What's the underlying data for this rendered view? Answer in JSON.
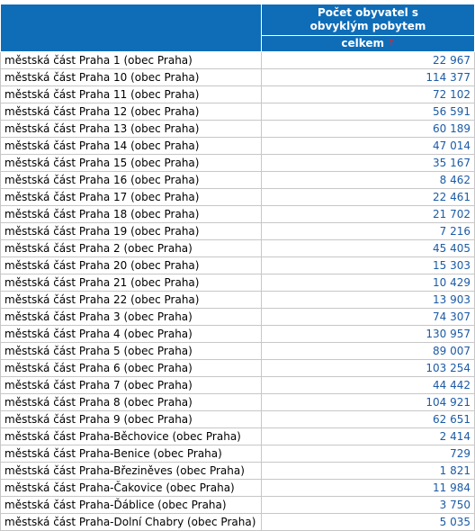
{
  "header": {
    "column_title": "Počet obyvatel s obvyklým pobytem",
    "sub_header": "celkem",
    "sort_icon": "sort-arrow-icon"
  },
  "rows": [
    {
      "name": "městská část Praha 1 (obec Praha)",
      "value": "22 967"
    },
    {
      "name": "městská část Praha 10 (obec Praha)",
      "value": "114 377"
    },
    {
      "name": "městská část Praha 11 (obec Praha)",
      "value": "72 102"
    },
    {
      "name": "městská část Praha 12 (obec Praha)",
      "value": "56 591"
    },
    {
      "name": "městská část Praha 13 (obec Praha)",
      "value": "60 189"
    },
    {
      "name": "městská část Praha 14 (obec Praha)",
      "value": "47 014"
    },
    {
      "name": "městská část Praha 15 (obec Praha)",
      "value": "35 167"
    },
    {
      "name": "městská část Praha 16 (obec Praha)",
      "value": "8 462"
    },
    {
      "name": "městská část Praha 17 (obec Praha)",
      "value": "22 461"
    },
    {
      "name": "městská část Praha 18 (obec Praha)",
      "value": "21 702"
    },
    {
      "name": "městská část Praha 19 (obec Praha)",
      "value": "7 216"
    },
    {
      "name": "městská část Praha 2 (obec Praha)",
      "value": "45 405"
    },
    {
      "name": "městská část Praha 20 (obec Praha)",
      "value": "15 303"
    },
    {
      "name": "městská část Praha 21 (obec Praha)",
      "value": "10 429"
    },
    {
      "name": "městská část Praha 22 (obec Praha)",
      "value": "13 903"
    },
    {
      "name": "městská část Praha 3 (obec Praha)",
      "value": "74 307"
    },
    {
      "name": "městská část Praha 4 (obec Praha)",
      "value": "130 957"
    },
    {
      "name": "městská část Praha 5 (obec Praha)",
      "value": "89 007"
    },
    {
      "name": "městská část Praha 6 (obec Praha)",
      "value": "103 254"
    },
    {
      "name": "městská část Praha 7 (obec Praha)",
      "value": "44 442"
    },
    {
      "name": "městská část Praha 8 (obec Praha)",
      "value": "104 921"
    },
    {
      "name": "městská část Praha 9 (obec Praha)",
      "value": "62 651"
    },
    {
      "name": "městská část Praha-Běchovice (obec Praha)",
      "value": "2 414"
    },
    {
      "name": "městská část Praha-Benice (obec Praha)",
      "value": "729"
    },
    {
      "name": "městská část Praha-Březiněves (obec Praha)",
      "value": "1 821"
    },
    {
      "name": "městská část Praha-Čakovice (obec Praha)",
      "value": "11 984"
    },
    {
      "name": "městská část Praha-Ďáblice (obec Praha)",
      "value": "3 750"
    },
    {
      "name": "městská část Praha-Dolní Chabry (obec Praha)",
      "value": "5 035"
    }
  ]
}
